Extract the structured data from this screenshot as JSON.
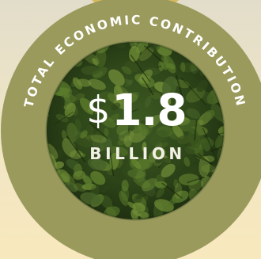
{
  "badge": {
    "arc_label": "TOTAL ECONOMIC CONTRIBUTION",
    "value_symbol": "$",
    "value_number": "1.8",
    "unit": "BILLION"
  },
  "colors": {
    "ring": "#9a9a5d",
    "top_ring": "#d9b95e",
    "foliage_dark": "#243617",
    "foliage_light": "#5c7a2c",
    "text": "#ffffff"
  }
}
